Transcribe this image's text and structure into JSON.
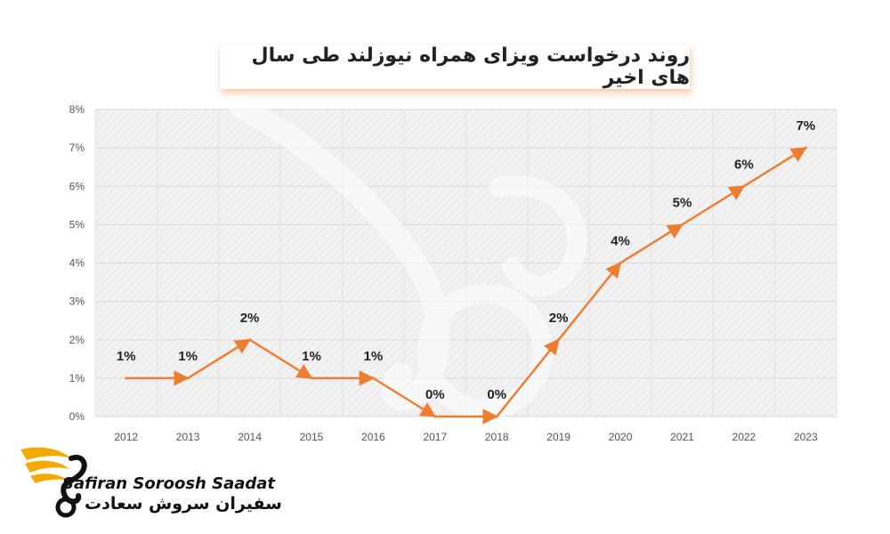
{
  "chart_data": {
    "type": "line",
    "title": "روند درخواست ویزای همراه نیوزلند طی سال های اخیر",
    "categories": [
      "2012",
      "2013",
      "2014",
      "2015",
      "2016",
      "2017",
      "2018",
      "2019",
      "2020",
      "2021",
      "2022",
      "2023"
    ],
    "values": [
      1,
      1,
      2,
      1,
      1,
      0,
      0,
      2,
      4,
      5,
      6,
      7
    ],
    "data_labels": [
      "1%",
      "1%",
      "2%",
      "1%",
      "1%",
      "0%",
      "0%",
      "2%",
      "4%",
      "5%",
      "6%",
      "7%"
    ],
    "ylim": [
      0,
      8
    ],
    "yticks": [
      "0%",
      "1%",
      "2%",
      "3%",
      "4%",
      "5%",
      "6%",
      "7%",
      "8%"
    ],
    "xlabel": "",
    "ylabel": "",
    "grid": true,
    "line_color": "#ED7D31",
    "plot_background": "#F2F2F2"
  },
  "logo": {
    "name_en": "Safiran Soroosh Saadat",
    "name_fa": "سفیران سروش سعادت",
    "accent": "#F2A900"
  }
}
